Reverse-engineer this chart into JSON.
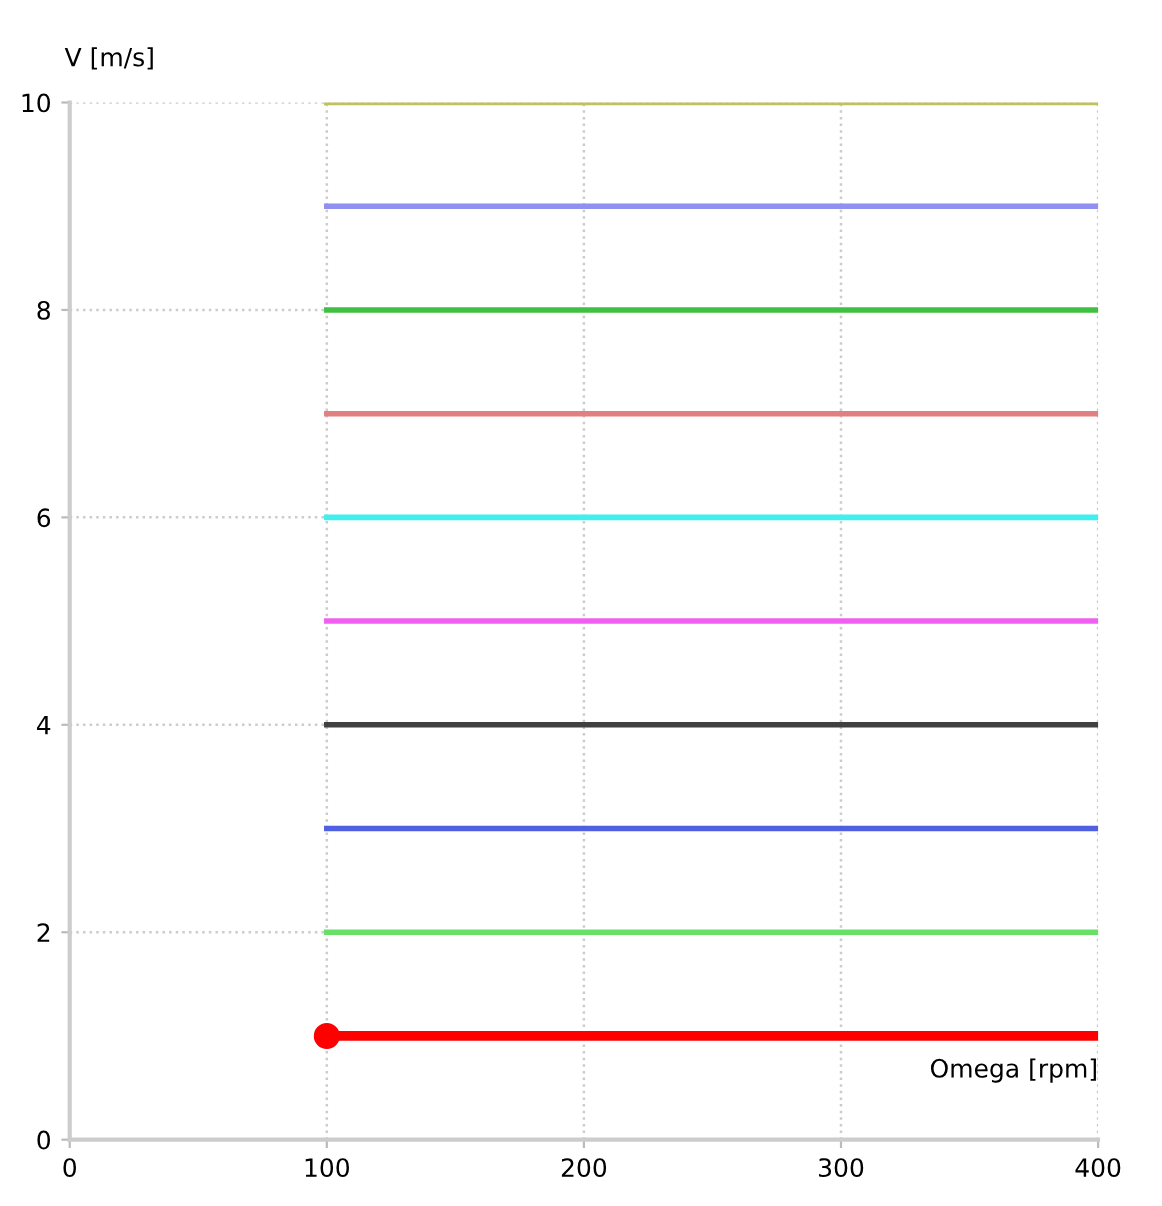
{
  "chart_data": {
    "type": "line",
    "xlabel": "Omega [rpm]",
    "ylabel": "V [m/s]",
    "x": [
      100,
      400
    ],
    "series": [
      {
        "color": "#ff0000",
        "values": [
          1,
          1
        ]
      },
      {
        "type": "scatter",
        "x": [
          100
        ],
        "color": "#ff0000",
        "values": [
          1
        ],
        "marker": "circle"
      },
      {
        "color": "#66e066",
        "values": [
          2,
          2
        ]
      },
      {
        "color": "#5060e0",
        "values": [
          3,
          3
        ]
      },
      {
        "color": "#404040",
        "values": [
          4,
          4
        ]
      },
      {
        "color": "#f060f0",
        "values": [
          5,
          5
        ]
      },
      {
        "color": "#40f0f0",
        "values": [
          6,
          6
        ]
      },
      {
        "color": "#e08080",
        "values": [
          7,
          7
        ]
      },
      {
        "color": "#40c040",
        "values": [
          8,
          8
        ]
      },
      {
        "color": "#9090f0",
        "values": [
          9,
          9
        ]
      },
      {
        "color": "#c0c060",
        "values": [
          10,
          10
        ]
      }
    ],
    "xlim": [
      0,
      400
    ],
    "xticks": [
      0,
      100,
      200,
      300,
      400
    ],
    "ylim": [
      0,
      10
    ],
    "yticks": [
      0,
      2,
      4,
      6,
      8,
      10
    ],
    "grid": true,
    "line_style": "solid"
  }
}
